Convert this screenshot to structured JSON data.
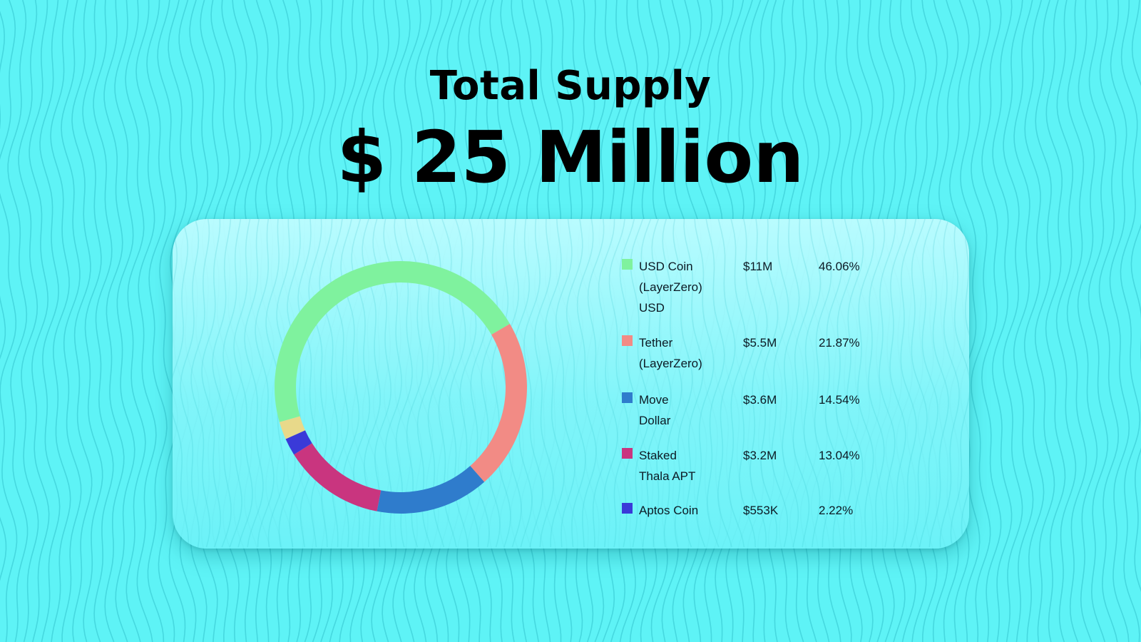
{
  "header": {
    "title": "Total Supply",
    "amount": "$ 25 Million"
  },
  "colors": {
    "background": "#5ef3f6",
    "usd_coin": "#7ff29e",
    "tether": "#f28b85",
    "move_dollar": "#2f7ccc",
    "staked_thala_apt": "#c9357f",
    "aptos_coin": "#3a3ad8",
    "other": "#e8d98a"
  },
  "chart_data": {
    "type": "pie",
    "donut": true,
    "series": [
      {
        "name": "USD Coin (LayerZero) USD",
        "value_label": "$11M",
        "percent": 46.06,
        "color": "#7ff29e"
      },
      {
        "name": "Tether (LayerZero)",
        "value_label": "$5.5M",
        "percent": 21.87,
        "color": "#f28b85"
      },
      {
        "name": "Move Dollar",
        "value_label": "$3.6M",
        "percent": 14.54,
        "color": "#2f7ccc"
      },
      {
        "name": "Staked Thala APT",
        "value_label": "$3.2M",
        "percent": 13.04,
        "color": "#c9357f"
      },
      {
        "name": "Aptos Coin",
        "value_label": "$553K",
        "percent": 2.22,
        "color": "#3a3ad8"
      }
    ],
    "unlisted_remainder": {
      "percent": 2.27,
      "color": "#e8d98a"
    },
    "legend_placement": "right"
  },
  "legend": [
    {
      "name_lines": [
        "USD Coin",
        "(LayerZero)",
        "USD"
      ],
      "value": "$11M",
      "percent": "46.06%"
    },
    {
      "name_lines": [
        "Tether",
        "(LayerZero)"
      ],
      "value": "$5.5M",
      "percent": "21.87%"
    },
    {
      "name_lines": [
        "Move",
        "Dollar"
      ],
      "value": "$3.6M",
      "percent": "14.54%"
    },
    {
      "name_lines": [
        "Staked",
        "Thala APT"
      ],
      "value": "$3.2M",
      "percent": "13.04%"
    },
    {
      "name_lines": [
        "Aptos Coin"
      ],
      "value": "$553K",
      "percent": "2.22%"
    }
  ]
}
